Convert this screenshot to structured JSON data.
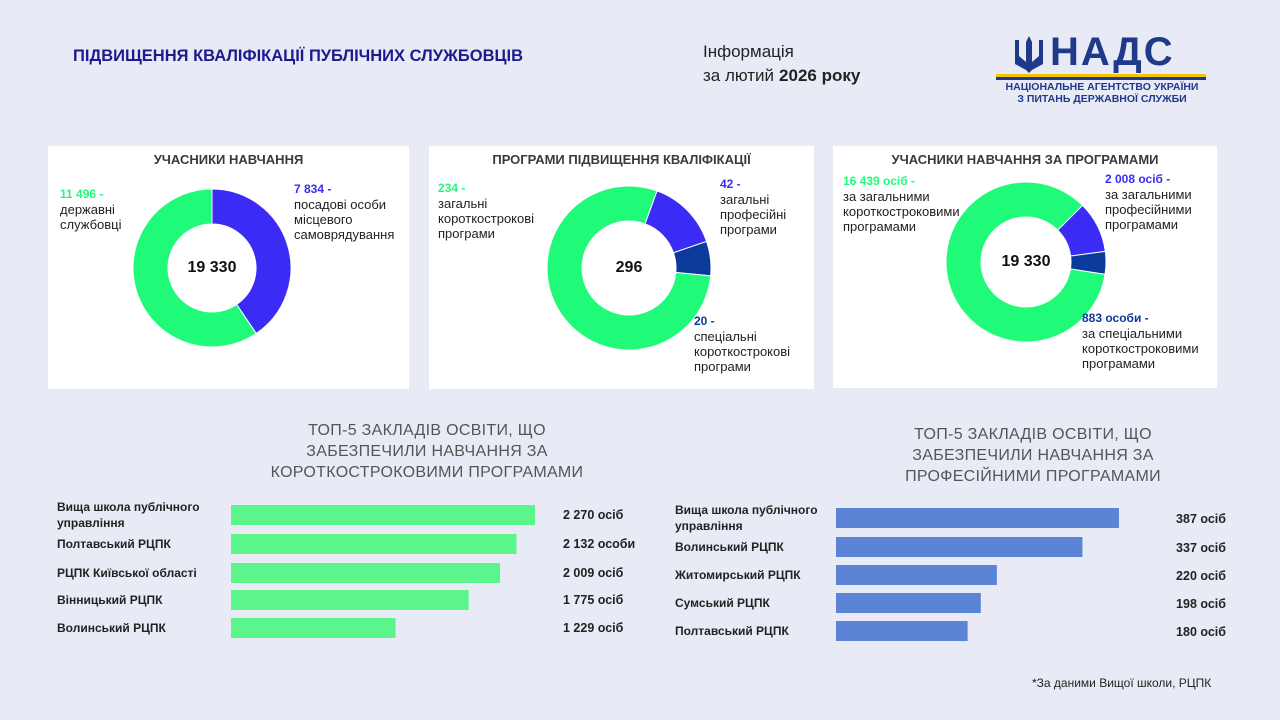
{
  "header": {
    "title": "ПІДВИЩЕННЯ КВАЛІФІКАЦІЇ ПУБЛІЧНИХ СЛУЖБОВЦІВ",
    "info": {
      "line1": "Інформація",
      "period": "за лютий",
      "year": "2026 року"
    }
  },
  "logo": {
    "name": "НАДС",
    "line1": "НАЦІОНАЛЬНЕ АГЕНТСТВО УКРАЇНИ",
    "line2": "З ПИТАНЬ ДЕРЖАВНОЇ СЛУЖБИ"
  },
  "chart_data": [
    {
      "type": "donut",
      "title": "УЧАСНИКИ НАВЧАННЯ",
      "total": {
        "value": 19330,
        "label": "19 330"
      },
      "categories": [
        "державні службовці",
        "посадові особи місцевого самоврядування"
      ],
      "values": [
        11496,
        7834
      ],
      "value_labels": [
        "11 496 -",
        "7 834  -"
      ],
      "colors": [
        "#1ffb78",
        "#3b2cf5"
      ]
    },
    {
      "type": "donut",
      "title": "ПРОГРАМИ ПІДВИЩЕННЯ КВАЛІФІКАЦІЇ",
      "total": {
        "value": 296,
        "label": "296"
      },
      "categories": [
        "загальні короткострокові програми",
        "загальні професійні програми",
        "спеціальні короткострокові програми"
      ],
      "values": [
        234,
        42,
        20
      ],
      "value_labels": [
        "234 -",
        "42 -",
        "20 -"
      ],
      "colors": [
        "#1ffb78",
        "#3b2cf5",
        "#0a3a9a"
      ]
    },
    {
      "type": "donut",
      "title": "УЧАСНИКИ НАВЧАННЯ ЗА ПРОГРАМАМИ",
      "total": {
        "value": 19330,
        "label": "19 330"
      },
      "categories": [
        "за загальними короткостроковими програмами",
        "за загальними професійними програмами",
        "за спеціальними короткостроковими програмами"
      ],
      "values": [
        16439,
        2008,
        883
      ],
      "value_labels": [
        "16 439 осіб -",
        "2 008 осіб -",
        "883 особи -"
      ],
      "colors": [
        "#1ffb78",
        "#3b2cf5",
        "#0a3a9a"
      ]
    },
    {
      "type": "hbar",
      "title": "ТОП-5 ЗАКЛАДІВ ОСВІТИ, ЩО ЗАБЕЗПЕЧИЛИ НАВЧАННЯ ЗА КОРОТКОСТРОКОВИМИ ПРОГРАМАМИ",
      "categories": [
        "Вища школа публічного управління",
        "Полтавський РЦПК",
        "РЦПК Київської області",
        "Вінницький РЦПК",
        "Волинський РЦПК"
      ],
      "values": [
        2270,
        2132,
        2009,
        1775,
        1229
      ],
      "value_labels": [
        "2 270 осіб",
        "2 132 особи",
        "2 009 осіб",
        "1 775 осіб",
        "1 229 осіб"
      ],
      "color": "#5cf58c"
    },
    {
      "type": "hbar",
      "title": "ТОП-5 ЗАКЛАДІВ ОСВІТИ, ЩО ЗАБЕЗПЕЧИЛИ НАВЧАННЯ ЗА ПРОФЕСІЙНИМИ ПРОГРАМАМИ",
      "categories": [
        "Вища школа публічного управління",
        "Волинський РЦПК",
        "Житомирський РЦПК",
        "Сумський РЦПК",
        "Полтавський РЦПК"
      ],
      "values": [
        387,
        337,
        220,
        198,
        180
      ],
      "value_labels": [
        "387 осіб",
        "337 осіб",
        "220 осіб",
        "198 осіб",
        "180 осіб"
      ],
      "color": "#5b84d6"
    }
  ],
  "footnote": "*За даними Вищої школи, РЦПК"
}
